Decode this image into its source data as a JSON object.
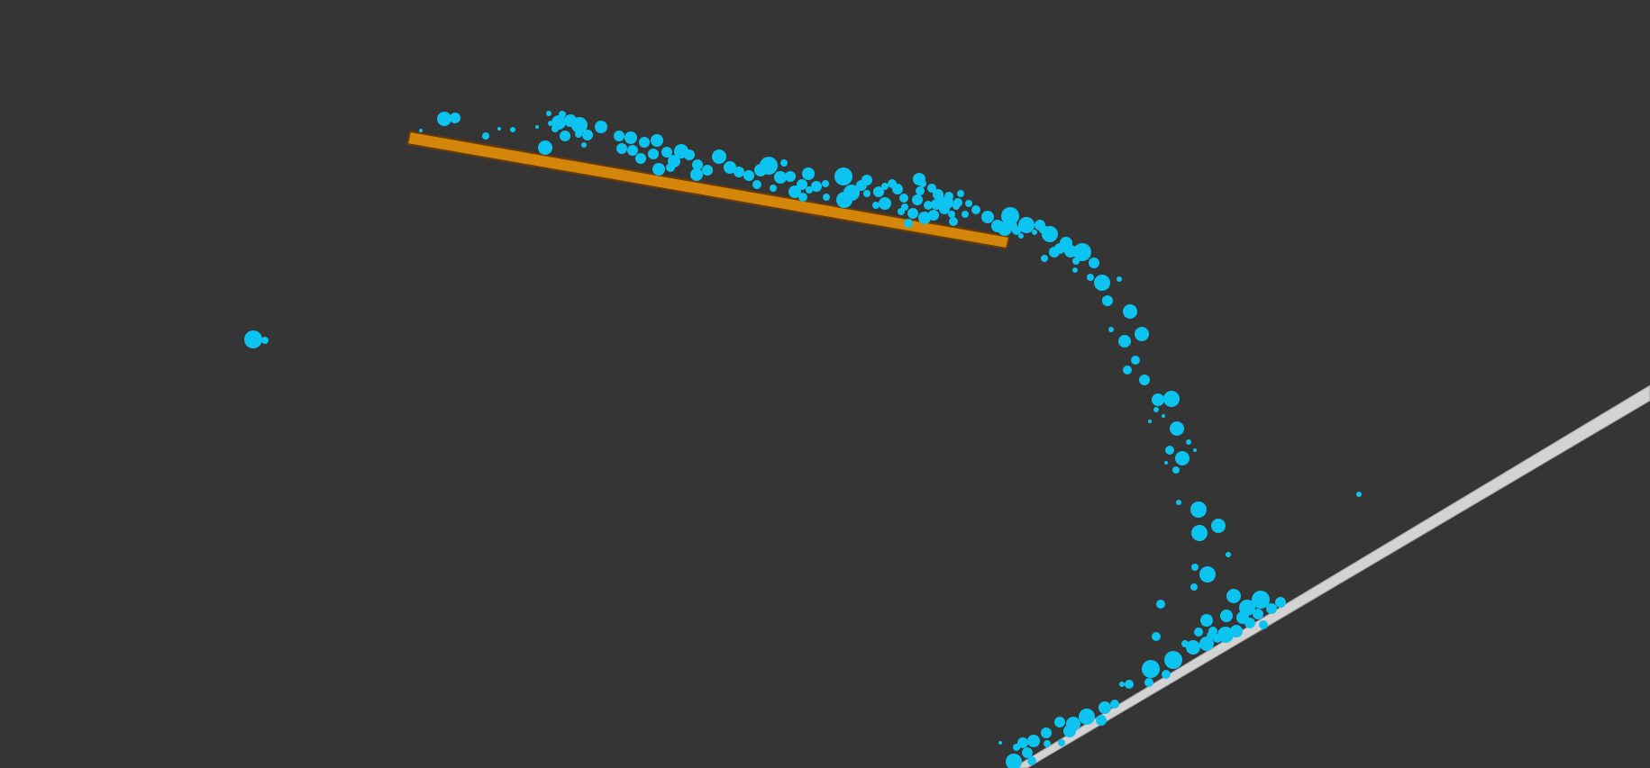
{
  "scene": {
    "background_color": "#353535",
    "particle_color": "#0cc4ef",
    "plank_color": "#d4860a",
    "plank_outline_color": "#6a3b08",
    "ramp_color": "#d3d3d3",
    "ramp_outline_color": "#9a9a9a"
  }
}
